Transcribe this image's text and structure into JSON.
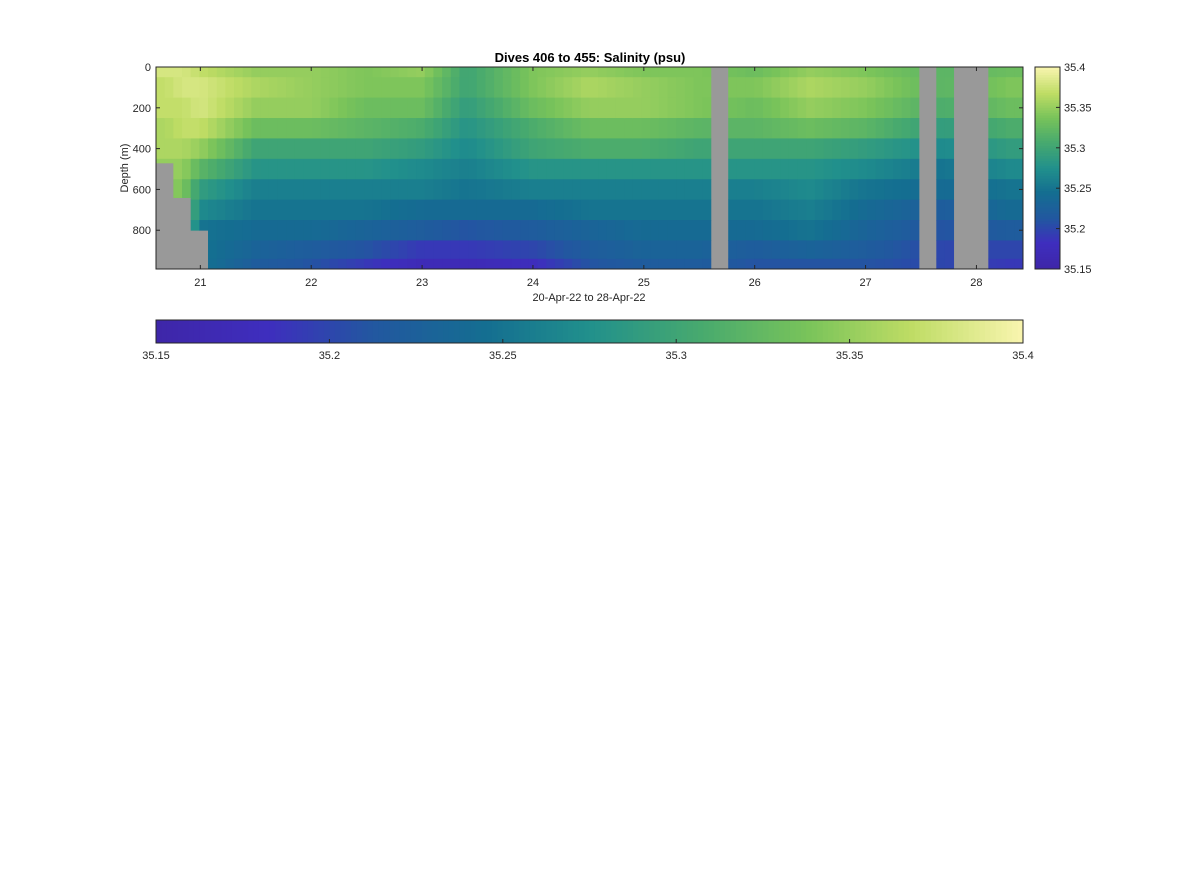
{
  "chart_data": {
    "type": "heatmap",
    "title": "Dives 406 to 455: Salinity (psu)",
    "xlabel": "20-Apr-22 to 28-Apr-22",
    "ylabel": "Depth (m)",
    "xlim": [
      20.6,
      28.42
    ],
    "ylim": [
      0,
      990
    ],
    "y_reversed": true,
    "x_ticks": [
      21,
      22,
      23,
      24,
      25,
      26,
      27,
      28
    ],
    "y_ticks": [
      0,
      200,
      400,
      600,
      800
    ],
    "colorbar": {
      "limits": [
        35.15,
        35.4
      ],
      "ticks": [
        35.15,
        35.2,
        35.25,
        35.3,
        35.35,
        35.4
      ],
      "tick_labels": [
        "35.15",
        "35.2",
        "35.25",
        "35.3",
        "35.35",
        "35.4"
      ]
    },
    "horizontal_colorbar": {
      "limits": [
        35.15,
        35.4
      ],
      "ticks": [
        35.15,
        35.2,
        35.25,
        35.3,
        35.35,
        35.4
      ],
      "tick_labels": [
        "35.15",
        "35.2",
        "35.25",
        "35.3",
        "35.35",
        "35.4"
      ]
    },
    "colormap": "parula-like (dark purple to pale yellow)",
    "missing_data_color": "#999999",
    "depth_levels": [
      0,
      100,
      200,
      300,
      400,
      500,
      600,
      700,
      800,
      900,
      980
    ],
    "gap_segments_x": [
      [
        25.62,
        25.78
      ],
      [
        27.48,
        27.64
      ],
      [
        27.8,
        28.1
      ]
    ],
    "max_depth_by_segment": [
      {
        "x_range": [
          20.6,
          20.76
        ],
        "max_depth": 470
      },
      {
        "x_range": [
          20.76,
          20.92
        ],
        "max_depth": 640
      },
      {
        "x_range": [
          20.92,
          21.08
        ],
        "max_depth": 800
      },
      {
        "x_range": [
          21.08,
          28.42
        ],
        "max_depth": 990
      }
    ],
    "profiles": [
      {
        "day": 20.68,
        "salinity": [
          35.38,
          35.37,
          35.37,
          35.36,
          35.36,
          35.35
        ]
      },
      {
        "day": 20.84,
        "salinity": [
          35.38,
          35.38,
          35.37,
          35.37,
          35.36,
          35.35,
          35.34
        ]
      },
      {
        "day": 21.0,
        "salinity": [
          35.37,
          35.38,
          35.38,
          35.37,
          35.35,
          35.32,
          35.29,
          35.27,
          35.25
        ]
      },
      {
        "day": 21.5,
        "salinity": [
          35.35,
          35.36,
          35.35,
          35.33,
          35.3,
          35.28,
          35.26,
          35.25,
          35.24,
          35.23,
          35.22
        ]
      },
      {
        "day": 22.0,
        "salinity": [
          35.35,
          35.35,
          35.35,
          35.33,
          35.3,
          35.28,
          35.26,
          35.25,
          35.24,
          35.22,
          35.21
        ]
      },
      {
        "day": 22.5,
        "salinity": [
          35.34,
          35.34,
          35.33,
          35.32,
          35.3,
          35.28,
          35.26,
          35.25,
          35.23,
          35.21,
          35.19
        ]
      },
      {
        "day": 23.0,
        "salinity": [
          35.35,
          35.34,
          35.33,
          35.31,
          35.29,
          35.27,
          35.26,
          35.24,
          35.22,
          35.19,
          35.17
        ]
      },
      {
        "day": 23.4,
        "salinity": [
          35.3,
          35.3,
          35.29,
          35.28,
          35.27,
          35.26,
          35.25,
          35.24,
          35.21,
          35.19,
          35.17
        ]
      },
      {
        "day": 24.0,
        "salinity": [
          35.34,
          35.34,
          35.33,
          35.31,
          35.3,
          35.28,
          35.26,
          35.24,
          35.22,
          35.2,
          35.18
        ]
      },
      {
        "day": 24.5,
        "salinity": [
          35.35,
          35.36,
          35.35,
          35.33,
          35.31,
          35.28,
          35.26,
          35.25,
          35.23,
          35.22,
          35.21
        ]
      },
      {
        "day": 25.0,
        "salinity": [
          35.34,
          35.35,
          35.35,
          35.33,
          35.31,
          35.28,
          35.26,
          35.25,
          35.24,
          35.23,
          35.22
        ]
      },
      {
        "day": 25.5,
        "salinity": [
          35.34,
          35.34,
          35.34,
          35.32,
          35.3,
          35.28,
          35.26,
          35.25,
          35.24,
          35.23,
          35.22
        ]
      },
      {
        "day": 26.0,
        "salinity": [
          35.33,
          35.34,
          35.33,
          35.32,
          35.3,
          35.28,
          35.26,
          35.25,
          35.24,
          35.22,
          35.21
        ]
      },
      {
        "day": 26.5,
        "salinity": [
          35.35,
          35.36,
          35.35,
          35.33,
          35.3,
          35.28,
          35.27,
          35.26,
          35.25,
          35.23,
          35.21
        ]
      },
      {
        "day": 27.0,
        "salinity": [
          35.34,
          35.35,
          35.34,
          35.32,
          35.29,
          35.27,
          35.25,
          35.24,
          35.23,
          35.22,
          35.21
        ]
      },
      {
        "day": 27.7,
        "salinity": [
          35.32,
          35.32,
          35.31,
          35.29,
          35.27,
          35.25,
          35.24,
          35.22,
          35.21,
          35.2,
          35.2
        ]
      },
      {
        "day": 28.3,
        "salinity": [
          35.33,
          35.34,
          35.33,
          35.31,
          35.29,
          35.27,
          35.25,
          35.24,
          35.22,
          35.2,
          35.19
        ]
      }
    ]
  }
}
